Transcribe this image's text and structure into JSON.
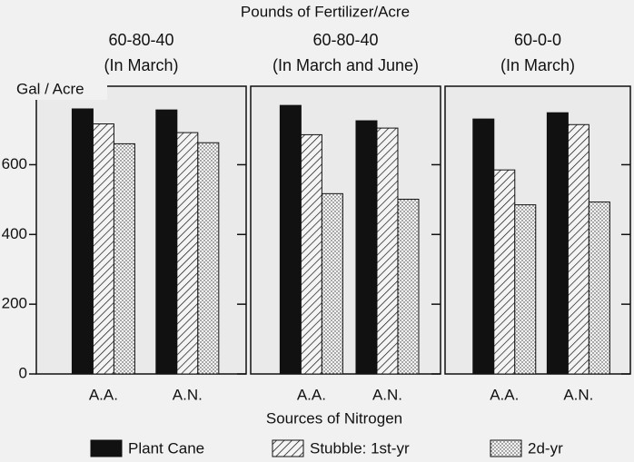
{
  "chart_data": {
    "type": "bar",
    "title": "Pounds of Fertilizer/Acre",
    "ylabel": "Gal / Acre",
    "xlabel": "Sources of Nitrogen",
    "categories": [
      "A.A.",
      "A.N."
    ],
    "ylim": [
      0,
      825
    ],
    "yticks": [
      0,
      200,
      400,
      600
    ],
    "series": [
      {
        "name": "Plant Cane",
        "color": "#111111",
        "fill": "solid"
      },
      {
        "name": "Stubble: 1st-yr",
        "color": "#111111",
        "fill": "hatch"
      },
      {
        "name": "2d-yr",
        "color": "#111111",
        "fill": "dots"
      }
    ],
    "panels": [
      {
        "subtitle": [
          "60-80-40",
          "(In March)"
        ],
        "values": [
          [
            760,
            757
          ],
          [
            717,
            692
          ],
          [
            660,
            663
          ]
        ]
      },
      {
        "subtitle": [
          "60-80-40",
          "(In March and June)"
        ],
        "values": [
          [
            770,
            726
          ],
          [
            686,
            705
          ],
          [
            517,
            501
          ]
        ]
      },
      {
        "subtitle": [
          "60-0-0",
          "(In March)"
        ],
        "values": [
          [
            731,
            749
          ],
          [
            585,
            715
          ],
          [
            485,
            493
          ]
        ]
      }
    ]
  }
}
